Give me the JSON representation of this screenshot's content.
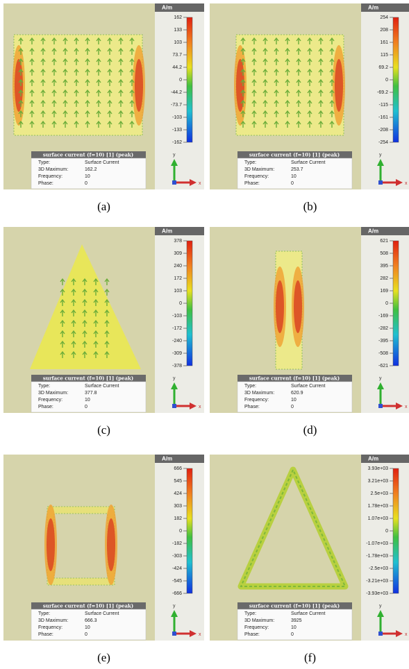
{
  "panels": [
    {
      "unit": "A/m",
      "ticks": [
        "162",
        "133",
        "103",
        "73.7",
        "44.2",
        "0",
        "-44.2",
        "-73.7",
        "-103",
        "-133",
        "-162"
      ],
      "info": {
        "title": "surface current (f=10) [1] (peak)",
        "rows": [
          [
            "Type:",
            "Surface Current"
          ],
          [
            "3D Maximum:",
            "162.2"
          ],
          [
            "Frequency:",
            "10"
          ],
          [
            "Phase:",
            "0"
          ]
        ]
      },
      "axes": [
        "y",
        "x"
      ],
      "caption": "(a)"
    },
    {
      "unit": "A/m",
      "ticks": [
        "254",
        "208",
        "161",
        "115",
        "69.2",
        "0",
        "-69.2",
        "-115",
        "-161",
        "-208",
        "-254"
      ],
      "info": {
        "title": "surface current (f=10) [1] (peak)",
        "rows": [
          [
            "Type:",
            "Surface Current"
          ],
          [
            "3D Maximum:",
            "253.7"
          ],
          [
            "Frequency:",
            "10"
          ],
          [
            "Phase:",
            "0"
          ]
        ]
      },
      "axes": [
        "y",
        "x"
      ],
      "caption": "(b)"
    },
    {
      "unit": "A/m",
      "ticks": [
        "378",
        "309",
        "240",
        "172",
        "103",
        "0",
        "-103",
        "-172",
        "-240",
        "-309",
        "-378"
      ],
      "info": {
        "title": "surface current (f=10) [1] (peak)",
        "rows": [
          [
            "Type:",
            "Surface Current"
          ],
          [
            "3D Maximum:",
            "377.8"
          ],
          [
            "Frequency:",
            "10"
          ],
          [
            "Phase:",
            "0"
          ]
        ]
      },
      "axes": [
        "y",
        "x"
      ],
      "caption": "(c)"
    },
    {
      "unit": "A/m",
      "ticks": [
        "621",
        "508",
        "395",
        "282",
        "169",
        "0",
        "-169",
        "-282",
        "-395",
        "-508",
        "-621"
      ],
      "info": {
        "title": "surface current (f=10) [1] (peak)",
        "rows": [
          [
            "Type:",
            "Surface Current"
          ],
          [
            "3D Maximum:",
            "620.9"
          ],
          [
            "Frequency:",
            "10"
          ],
          [
            "Phase:",
            "0"
          ]
        ]
      },
      "axes": [
        "y",
        "x"
      ],
      "caption": "(d)"
    },
    {
      "unit": "A/m",
      "ticks": [
        "666",
        "545",
        "424",
        "303",
        "182",
        "0",
        "-182",
        "-303",
        "-424",
        "-545",
        "-666"
      ],
      "info": {
        "title": "surface current (f=10) [1] (peak)",
        "rows": [
          [
            "Type:",
            "Surface Current"
          ],
          [
            "3D Maximum:",
            "666.3"
          ],
          [
            "Frequency:",
            "10"
          ],
          [
            "Phase:",
            "0"
          ]
        ]
      },
      "axes": [
        "y",
        "x"
      ],
      "caption": "(e)"
    },
    {
      "unit": "A/m",
      "ticks": [
        "3.93e+03",
        "3.21e+03",
        "2.5e+03",
        "1.78e+03",
        "1.07e+03",
        "0",
        "-1.07e+03",
        "-1.78e+03",
        "-2.5e+03",
        "-3.21e+03",
        "-3.93e+03"
      ],
      "info": {
        "title": "surface current (f=10) [1] (peak)",
        "rows": [
          [
            "Type:",
            "Surface Current"
          ],
          [
            "3D Maximum:",
            "3925"
          ],
          [
            "Frequency:",
            "10"
          ],
          [
            "Phase:",
            "0"
          ]
        ]
      },
      "axes": [
        "y",
        "x"
      ],
      "caption": "(f)"
    }
  ]
}
